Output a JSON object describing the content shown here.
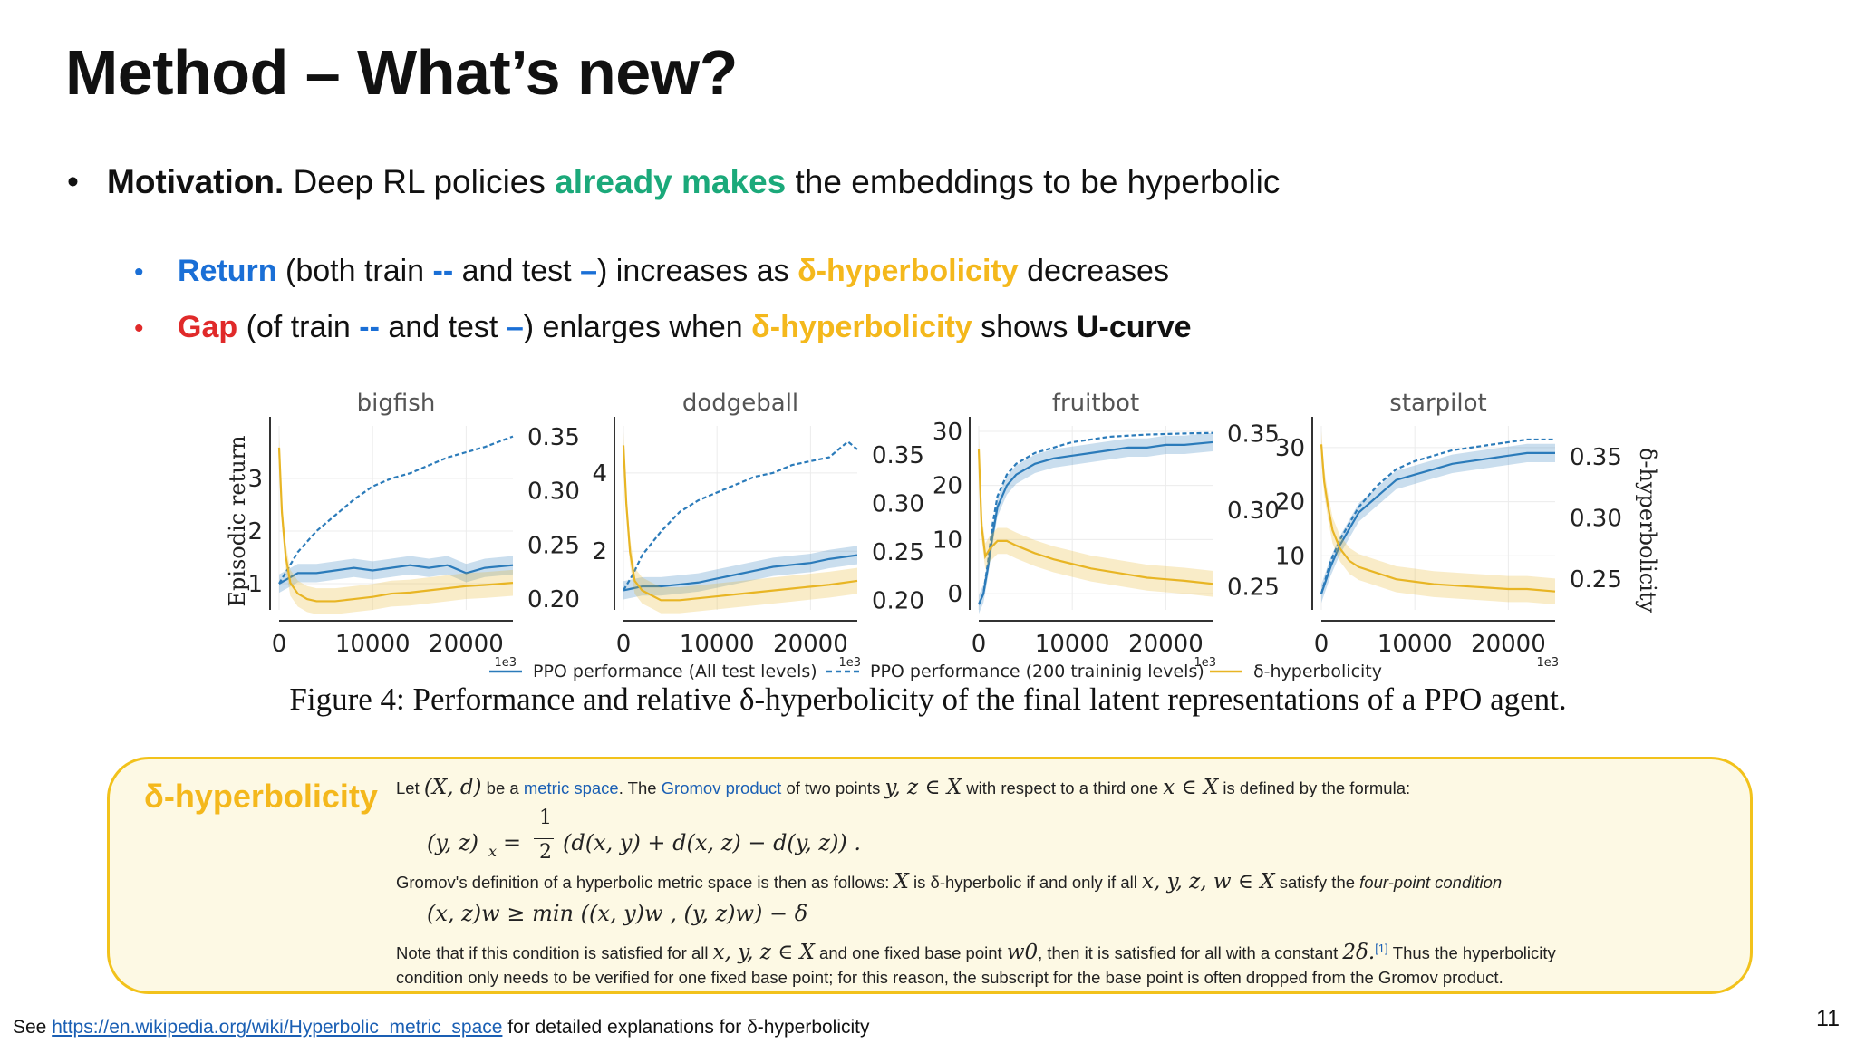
{
  "title": "Method – What’s new?",
  "bullet_main": {
    "lead": "Motivation.",
    "pre": " Deep RL policies ",
    "highlight": "already makes",
    "post": " the embeddings to be hyperbolic"
  },
  "sub_return": {
    "word": "Return",
    "t1": " (both train ",
    "dash_train": "--",
    "t2": " and test ",
    "dash_test": "–",
    "t3": ") increases as ",
    "delta": "δ-hyperbolicity",
    "t4": " decreases"
  },
  "sub_gap": {
    "word": "Gap",
    "t1": " (of train ",
    "dash_train": "--",
    "t2": " and test ",
    "dash_test": "–",
    "t3": ") enlarges when ",
    "delta": "δ-hyperbolicity",
    "t4": " shows ",
    "ucurve": "U-curve"
  },
  "colors": {
    "blue": "#1a6fd6",
    "red": "#e02a2a",
    "gold": "#f4b81c",
    "green": "#1ba97a",
    "series_blue": "#2b7bba",
    "series_gold": "#e8b524"
  },
  "chart_data": {
    "type": "line",
    "ylabel": "Episodic return",
    "y2label": "δ-hyperbolicity",
    "x_unit_label": "1e3",
    "legend": [
      "PPO performance (All test levels)",
      "PPO performance (200 traininig levels)",
      "δ-hyperbolicity"
    ],
    "panels": [
      {
        "title": "bigfish",
        "xlim": [
          0,
          25000
        ],
        "xticks": [
          0,
          10000,
          20000
        ],
        "ylim": [
          0.5,
          4.0
        ],
        "yticks": [
          1,
          2,
          3
        ],
        "y2lim": [
          0.19,
          0.36
        ],
        "y2ticks": [
          0.2,
          0.25,
          0.3,
          0.35
        ],
        "series": [
          {
            "name": "PPO performance (All test levels)",
            "axis": "left",
            "style": "solid",
            "x": [
              0,
              1000,
              2000,
              4000,
              6000,
              8000,
              10000,
              12000,
              14000,
              16000,
              18000,
              20000,
              22000,
              25000
            ],
            "values": [
              1.0,
              1.1,
              1.2,
              1.2,
              1.25,
              1.3,
              1.25,
              1.3,
              1.35,
              1.3,
              1.35,
              1.2,
              1.3,
              1.35
            ]
          },
          {
            "name": "PPO performance (200 traininig levels)",
            "axis": "left",
            "style": "dashed",
            "x": [
              0,
              1000,
              2000,
              4000,
              6000,
              8000,
              10000,
              12000,
              14000,
              16000,
              18000,
              20000,
              22000,
              25000
            ],
            "values": [
              1.0,
              1.3,
              1.6,
              2.0,
              2.3,
              2.6,
              2.85,
              3.0,
              3.1,
              3.25,
              3.4,
              3.5,
              3.6,
              3.8
            ]
          },
          {
            "name": "δ-hyperbolicity",
            "axis": "right",
            "style": "solid",
            "x": [
              0,
              300,
              700,
              1200,
              2000,
              3000,
              4000,
              6000,
              8000,
              10000,
              12000,
              14000,
              16000,
              18000,
              20000,
              22000,
              25000
            ],
            "values": [
              0.34,
              0.28,
              0.24,
              0.215,
              0.205,
              0.2,
              0.198,
              0.198,
              0.2,
              0.202,
              0.205,
              0.206,
              0.208,
              0.21,
              0.212,
              0.213,
              0.215
            ]
          }
        ]
      },
      {
        "title": "dodgeball",
        "xlim": [
          0,
          25000
        ],
        "xticks": [
          0,
          10000,
          20000
        ],
        "ylim": [
          0.5,
          5.2
        ],
        "yticks": [
          2,
          4
        ],
        "y2lim": [
          0.19,
          0.38
        ],
        "y2ticks": [
          0.2,
          0.25,
          0.3,
          0.35
        ],
        "series": [
          {
            "name": "PPO performance (All test levels)",
            "axis": "left",
            "style": "solid",
            "x": [
              0,
              1000,
              2000,
              4000,
              6000,
              8000,
              10000,
              12000,
              14000,
              16000,
              18000,
              20000,
              22000,
              25000
            ],
            "values": [
              1.0,
              1.05,
              1.1,
              1.1,
              1.15,
              1.2,
              1.3,
              1.4,
              1.5,
              1.6,
              1.65,
              1.7,
              1.8,
              1.9
            ]
          },
          {
            "name": "PPO performance (200 traininig levels)",
            "axis": "left",
            "style": "dashed",
            "x": [
              0,
              1000,
              2000,
              4000,
              6000,
              8000,
              10000,
              12000,
              14000,
              16000,
              18000,
              20000,
              22000,
              24000,
              25000
            ],
            "values": [
              1.0,
              1.4,
              1.9,
              2.5,
              3.0,
              3.3,
              3.5,
              3.7,
              3.9,
              4.0,
              4.2,
              4.3,
              4.4,
              4.8,
              4.6
            ]
          },
          {
            "name": "δ-hyperbolicity",
            "axis": "right",
            "style": "solid",
            "x": [
              0,
              300,
              700,
              1200,
              2000,
              3000,
              4000,
              6000,
              8000,
              10000,
              12000,
              14000,
              16000,
              18000,
              20000,
              22000,
              25000
            ],
            "values": [
              0.36,
              0.3,
              0.25,
              0.22,
              0.21,
              0.205,
              0.2,
              0.2,
              0.202,
              0.204,
              0.206,
              0.208,
              0.21,
              0.212,
              0.214,
              0.216,
              0.22
            ]
          }
        ]
      },
      {
        "title": "fruitbot",
        "xlim": [
          0,
          25000
        ],
        "xticks": [
          0,
          10000,
          20000
        ],
        "ylim": [
          -3,
          31
        ],
        "yticks": [
          0,
          10,
          20,
          30
        ],
        "y2lim": [
          0.235,
          0.355
        ],
        "y2ticks": [
          0.25,
          0.3,
          0.35
        ],
        "series": [
          {
            "name": "PPO performance (All test levels)",
            "axis": "left",
            "style": "solid",
            "x": [
              0,
              500,
              1000,
              1500,
              2000,
              3000,
              4000,
              6000,
              8000,
              10000,
              12000,
              14000,
              16000,
              18000,
              20000,
              22000,
              25000
            ],
            "values": [
              -2,
              0,
              5,
              11,
              16,
              20,
              22,
              24,
              25,
              25.5,
              26,
              26.5,
              27,
              27,
              27.5,
              27.5,
              28
            ]
          },
          {
            "name": "PPO performance (200 traininig levels)",
            "axis": "left",
            "style": "dashed",
            "x": [
              0,
              500,
              1000,
              1500,
              2000,
              3000,
              4000,
              6000,
              8000,
              10000,
              12000,
              14000,
              16000,
              18000,
              20000,
              22000,
              25000
            ],
            "values": [
              -2,
              0,
              6,
              13,
              18,
              22,
              24,
              26,
              27,
              28,
              28.5,
              29,
              29.2,
              29.4,
              29.5,
              29.6,
              29.7
            ]
          },
          {
            "name": "δ-hyperbolicity",
            "axis": "right",
            "style": "solid",
            "x": [
              0,
              300,
              700,
              1200,
              2000,
              3000,
              4000,
              6000,
              8000,
              10000,
              12000,
              14000,
              16000,
              18000,
              20000,
              22000,
              25000
            ],
            "values": [
              0.34,
              0.29,
              0.27,
              0.275,
              0.28,
              0.28,
              0.277,
              0.272,
              0.268,
              0.265,
              0.262,
              0.26,
              0.258,
              0.256,
              0.255,
              0.254,
              0.252
            ]
          }
        ]
      },
      {
        "title": "starpilot",
        "xlim": [
          0,
          25000
        ],
        "xticks": [
          0,
          10000,
          20000
        ],
        "ylim": [
          0,
          34
        ],
        "yticks": [
          10,
          20,
          30
        ],
        "y2lim": [
          0.225,
          0.375
        ],
        "y2ticks": [
          0.25,
          0.3,
          0.35
        ],
        "series": [
          {
            "name": "PPO performance (All test levels)",
            "axis": "left",
            "style": "solid",
            "x": [
              0,
              1000,
              2000,
              4000,
              6000,
              8000,
              10000,
              12000,
              14000,
              16000,
              18000,
              20000,
              22000,
              25000
            ],
            "values": [
              3,
              8,
              12,
              18,
              21,
              24,
              25,
              26,
              27,
              27.5,
              28,
              28.5,
              29,
              29
            ]
          },
          {
            "name": "PPO performance (200 traininig levels)",
            "axis": "left",
            "style": "dashed",
            "x": [
              0,
              1000,
              2000,
              4000,
              6000,
              8000,
              10000,
              12000,
              14000,
              16000,
              18000,
              20000,
              22000,
              25000
            ],
            "values": [
              3,
              9,
              13,
              19,
              23,
              26,
              27.5,
              28.5,
              29.5,
              30,
              30.5,
              31,
              31.5,
              31.5
            ]
          },
          {
            "name": "δ-hyperbolicity",
            "axis": "right",
            "style": "solid",
            "x": [
              0,
              300,
              700,
              1200,
              2000,
              3000,
              4000,
              6000,
              8000,
              10000,
              12000,
              14000,
              16000,
              18000,
              20000,
              22000,
              25000
            ],
            "values": [
              0.36,
              0.33,
              0.31,
              0.29,
              0.275,
              0.265,
              0.26,
              0.255,
              0.25,
              0.248,
              0.246,
              0.245,
              0.244,
              0.243,
              0.242,
              0.242,
              0.24
            ]
          }
        ]
      }
    ]
  },
  "caption": {
    "label": "Figure 4:",
    "text": " Performance and relative δ-hyperbolicity of the final latent representations of a PPO agent."
  },
  "box": {
    "title": "δ-hyperbolicity",
    "line1": {
      "t1": "Let ",
      "m1": "(X, d)",
      "t2": " be a ",
      "link1": "metric space",
      "t3": ". The ",
      "link2": "Gromov product",
      "t4": " of two points ",
      "m2": "y, z ∈ X",
      "t5": " with respect to a third one ",
      "m3": "x ∈ X",
      "t6": " is defined by the formula:"
    },
    "formula1": {
      "lhs": "(y, z)",
      "sub": "x",
      "eq": " = ",
      "num": "1",
      "den": "2",
      "rhs": "(d(x, y) + d(x, z) − d(y, z)) ."
    },
    "line2": {
      "t1": "Gromov's definition of a hyperbolic metric space is then as follows: ",
      "m1": "X",
      "t2": " is δ-hyperbolic if and only if all ",
      "m2": "x, y, z, w ∈ X",
      "t3": " satisfy the ",
      "em": "four-point condition"
    },
    "formula2": "(x, z)w ≥ min ((x, y)w , (y, z)w) − δ",
    "line3": {
      "t1": "Note that if this condition is satisfied for all ",
      "m1": "x, y, z ∈ X",
      "t2": " and one fixed base point ",
      "m2": "w0",
      "t3": ", then it is satisfied for all  with a constant ",
      "m3": "2δ.",
      "ref": "[1]",
      "t4": " Thus the hyperbolicity"
    },
    "line4": "condition only needs to be verified for one fixed base point; for this reason, the subscript for the base point is often dropped from the Gromov product."
  },
  "footer": {
    "pre": "See ",
    "link": "https://en.wikipedia.org/wiki/Hyperbolic_metric_space",
    "post": " for detailed explanations for δ-hyperbolicity"
  },
  "page_number": "11"
}
